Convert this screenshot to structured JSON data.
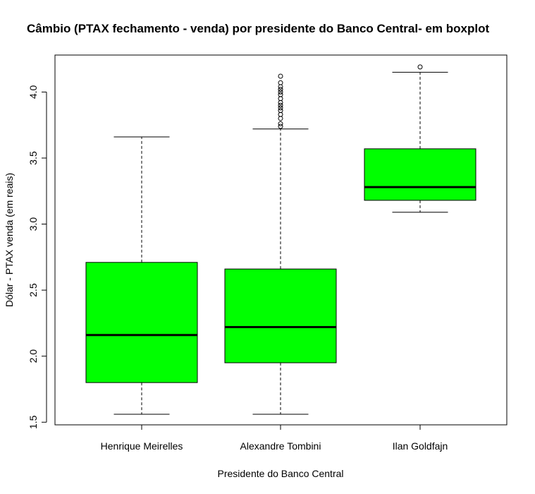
{
  "chart_data": {
    "type": "boxplot",
    "title": "Câmbio (PTAX fechamento - venda) por presidente do Banco Central- em boxplot",
    "xlabel": "Presidente do Banco Central",
    "ylabel": "Dólar - PTAX venda (em reais)",
    "ylim": [
      1.48,
      4.28
    ],
    "yticks": [
      "1.5",
      "2.0",
      "2.5",
      "3.0",
      "3.5",
      "4.0"
    ],
    "box_color": "#00ff00",
    "categories": [
      "Henrique Meirelles",
      "Alexandre Tombini",
      "Ilan Goldfajn"
    ],
    "boxes": [
      {
        "name": "Henrique Meirelles",
        "whisker_low": 1.56,
        "q1": 1.8,
        "median": 2.16,
        "q3": 2.71,
        "whisker_high": 3.66,
        "outliers": []
      },
      {
        "name": "Alexandre Tombini",
        "whisker_low": 1.56,
        "q1": 1.95,
        "median": 2.22,
        "q3": 2.66,
        "whisker_high": 3.72,
        "outliers": [
          3.74,
          3.76,
          3.8,
          3.83,
          3.86,
          3.88,
          3.9,
          3.92,
          3.95,
          3.98,
          4.0,
          4.02,
          4.04,
          4.07,
          4.12
        ]
      },
      {
        "name": "Ilan Goldfajn",
        "whisker_low": 3.09,
        "q1": 3.18,
        "median": 3.28,
        "q3": 3.57,
        "whisker_high": 4.15,
        "outliers": [
          4.19
        ]
      }
    ]
  }
}
